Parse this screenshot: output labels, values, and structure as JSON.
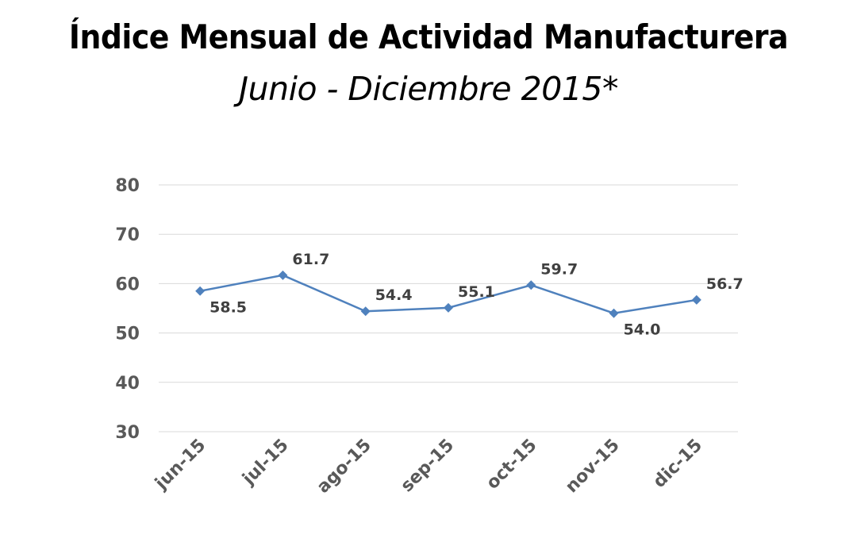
{
  "chart_data": {
    "type": "line",
    "title": "Índice Mensual de Actividad Manufacturera",
    "subtitle": "Junio - Diciembre 2015*",
    "xlabel": "",
    "ylabel": "",
    "categories": [
      "jun-15",
      "jul-15",
      "ago-15",
      "sep-15",
      "oct-15",
      "nov-15",
      "dic-15"
    ],
    "values": [
      58.5,
      61.7,
      54.4,
      55.1,
      59.7,
      54.0,
      56.7
    ],
    "data_labels": [
      "58.5",
      "61.7",
      "54.4",
      "55.1",
      "59.7",
      "54.0",
      "56.7"
    ],
    "ylim": [
      30,
      80
    ],
    "yticks": [
      "30",
      "40",
      "50",
      "60",
      "70",
      "80"
    ],
    "grid": true,
    "legend": "none",
    "marker": "diamond",
    "colors": {
      "line": "#4F81BD",
      "grid": "#D9D9D9",
      "tick_text": "#595959"
    }
  }
}
